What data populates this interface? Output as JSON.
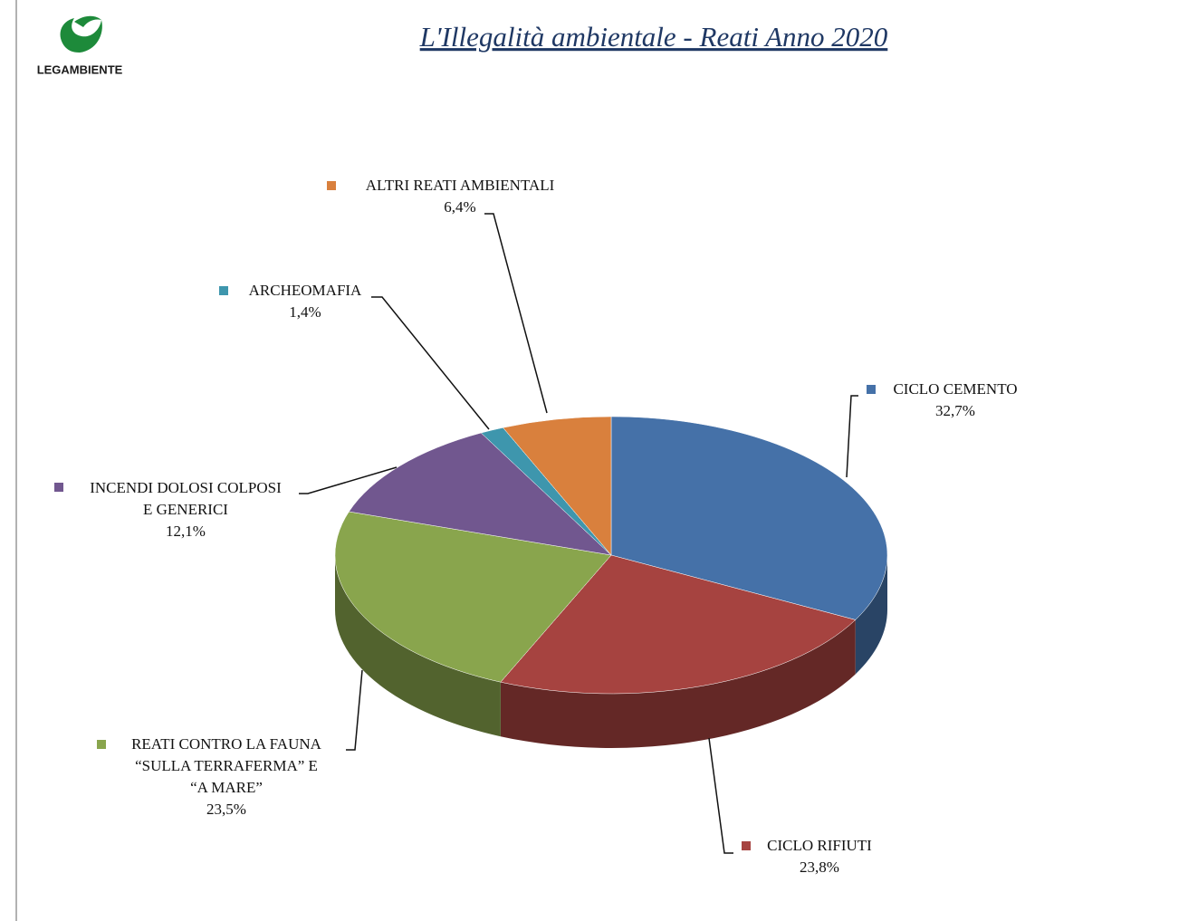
{
  "logo": "LEGAMBIENTE",
  "chart_data": {
    "type": "pie3d",
    "title": "L'Illegalità ambientale - Reati Anno 2020",
    "categories": [
      "CICLO CEMENTO",
      "CICLO RIFIUTI",
      "REATI CONTRO LA FAUNA\n“SULLA  TERRAFERMA” E\n“A  MARE”",
      "INCENDI DOLOSI COLPOSI\nE GENERICI",
      "ARCHEOMAFIA",
      "ALTRI  REATI AMBIENTALI"
    ],
    "values": [
      32.7,
      23.8,
      23.5,
      12.1,
      1.4,
      6.4
    ],
    "value_labels": [
      "32,7%",
      "23,8%",
      "23,5%",
      "12,1%",
      "1,4%",
      "6,4%"
    ],
    "colors": [
      "#4571a8",
      "#a64340",
      "#89a54d",
      "#71578f",
      "#3e96ad",
      "#d9803d"
    ]
  }
}
